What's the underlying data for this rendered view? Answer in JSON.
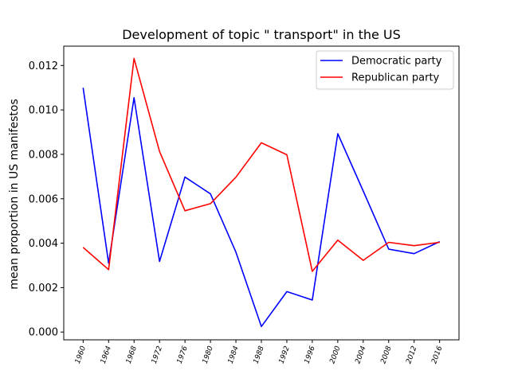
{
  "chart_data": {
    "type": "line",
    "title": "Development of topic \" transport\" in the US",
    "xlabel": "",
    "ylabel": "mean proportion in US manifestos",
    "categories": [
      "1960",
      "1964",
      "1968",
      "1972",
      "1976",
      "1980",
      "1984",
      "1988",
      "1992",
      "1996",
      "2000",
      "2004",
      "2008",
      "2012",
      "2016"
    ],
    "ylim": [
      -0.00035,
      0.01287
    ],
    "yticks": [
      "0.000",
      "0.002",
      "0.004",
      "0.006",
      "0.008",
      "0.010",
      "0.012"
    ],
    "ytick_values": [
      0.0,
      0.002,
      0.004,
      0.006,
      0.008,
      0.01,
      0.012
    ],
    "grid": false,
    "legend_position": "top-right",
    "series": [
      {
        "name": "Democratic party",
        "color": "#0000ff",
        "values": [
          0.011,
          0.0031,
          0.01055,
          0.00318,
          0.00698,
          0.00622,
          0.0036,
          0.00025,
          0.00182,
          0.00144,
          0.00893,
          0.00635,
          0.00373,
          0.00353,
          0.00407
        ]
      },
      {
        "name": "Republican party",
        "color": "#ff0000",
        "values": [
          0.00381,
          0.00281,
          0.01232,
          0.00813,
          0.00546,
          0.00578,
          0.00697,
          0.00852,
          0.00798,
          0.00273,
          0.00414,
          0.00323,
          0.00404,
          0.00389,
          0.00404
        ]
      }
    ]
  }
}
